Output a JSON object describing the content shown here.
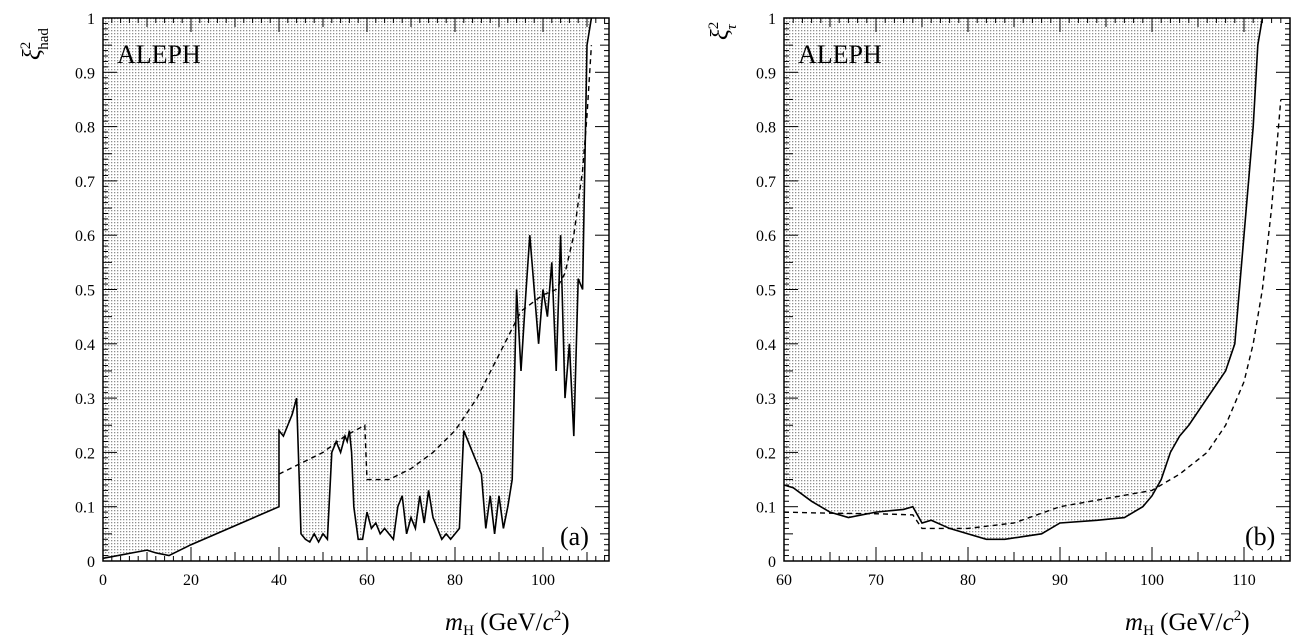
{
  "chart_data": [
    {
      "type": "line",
      "panel_label": "(a)",
      "experiment_label": "ALEPH",
      "xlabel": "m_H (GeV/c²)",
      "ylabel": "ξ²_had",
      "xlim": [
        0,
        115
      ],
      "ylim": [
        0,
        1
      ],
      "x_ticks": [
        0,
        20,
        40,
        60,
        80,
        100
      ],
      "y_ticks": [
        0,
        0.1,
        0.2,
        0.3,
        0.4,
        0.5,
        0.6,
        0.7,
        0.8,
        0.9,
        1
      ],
      "shaded_region": "above observed limit",
      "series": [
        {
          "style": "solid",
          "x": [
            0,
            10,
            12,
            15,
            20,
            30,
            40,
            40,
            41,
            42,
            43,
            44,
            45,
            46,
            47,
            48,
            49,
            50,
            51,
            52,
            53,
            54,
            55,
            55.5,
            56,
            56.5,
            57,
            58,
            59,
            60,
            61,
            62,
            63,
            64,
            65,
            66,
            67,
            68,
            69,
            70,
            71,
            72,
            73,
            74,
            75,
            76,
            77,
            78,
            79,
            80,
            81,
            82,
            83,
            84,
            85,
            86,
            87,
            88,
            89,
            90,
            91,
            92,
            93,
            94,
            95,
            96,
            97,
            98,
            99,
            100,
            101,
            102,
            103,
            104,
            105,
            106,
            107,
            108,
            109,
            110,
            111
          ],
          "y": [
            0.005,
            0.02,
            0.015,
            0.01,
            0.03,
            0.065,
            0.1,
            0.24,
            0.23,
            0.25,
            0.27,
            0.3,
            0.05,
            0.04,
            0.035,
            0.05,
            0.035,
            0.05,
            0.04,
            0.2,
            0.22,
            0.2,
            0.23,
            0.22,
            0.24,
            0.2,
            0.1,
            0.04,
            0.04,
            0.09,
            0.06,
            0.07,
            0.05,
            0.06,
            0.05,
            0.04,
            0.1,
            0.12,
            0.05,
            0.08,
            0.06,
            0.12,
            0.07,
            0.13,
            0.08,
            0.06,
            0.04,
            0.05,
            0.04,
            0.05,
            0.06,
            0.24,
            0.22,
            0.2,
            0.18,
            0.16,
            0.06,
            0.12,
            0.05,
            0.12,
            0.06,
            0.1,
            0.15,
            0.5,
            0.35,
            0.48,
            0.6,
            0.5,
            0.4,
            0.5,
            0.45,
            0.55,
            0.35,
            0.6,
            0.3,
            0.4,
            0.23,
            0.52,
            0.5,
            0.95,
            1.0
          ]
        },
        {
          "style": "dashed",
          "x": [
            40,
            45,
            50,
            55,
            59.5,
            60,
            65,
            70,
            75,
            80,
            85,
            90,
            95,
            100,
            103,
            105,
            107,
            109,
            110,
            111
          ],
          "y": [
            0.16,
            0.18,
            0.2,
            0.23,
            0.25,
            0.15,
            0.15,
            0.17,
            0.2,
            0.24,
            0.3,
            0.38,
            0.46,
            0.49,
            0.5,
            0.53,
            0.6,
            0.72,
            0.82,
            0.95
          ]
        }
      ]
    },
    {
      "type": "line",
      "panel_label": "(b)",
      "experiment_label": "ALEPH",
      "xlabel": "m_H (GeV/c²)",
      "ylabel": "ξ²_τ",
      "xlim": [
        60,
        115
      ],
      "ylim": [
        0,
        1
      ],
      "x_ticks": [
        60,
        70,
        80,
        90,
        100,
        110
      ],
      "y_ticks": [
        0,
        0.1,
        0.2,
        0.3,
        0.4,
        0.5,
        0.6,
        0.7,
        0.8,
        0.9,
        1
      ],
      "shaded_region": "above observed limit",
      "series": [
        {
          "style": "solid",
          "x": [
            60,
            61,
            63,
            65,
            67,
            70,
            73,
            74,
            75,
            76,
            78,
            80,
            82,
            84,
            86,
            88,
            90,
            94,
            97,
            99,
            100,
            101,
            102,
            103,
            104,
            106,
            108,
            109,
            110,
            111,
            111.5,
            112
          ],
          "y": [
            0.14,
            0.135,
            0.11,
            0.09,
            0.08,
            0.09,
            0.095,
            0.1,
            0.07,
            0.075,
            0.06,
            0.05,
            0.04,
            0.04,
            0.045,
            0.05,
            0.07,
            0.075,
            0.08,
            0.1,
            0.12,
            0.15,
            0.2,
            0.23,
            0.25,
            0.3,
            0.35,
            0.4,
            0.6,
            0.8,
            0.95,
            1.0
          ]
        },
        {
          "style": "dashed",
          "x": [
            60,
            65,
            70,
            74,
            75,
            80,
            85,
            90,
            95,
            100,
            103,
            106,
            108,
            110,
            111,
            112,
            113,
            114
          ],
          "y": [
            0.09,
            0.088,
            0.087,
            0.085,
            0.06,
            0.06,
            0.07,
            0.1,
            0.115,
            0.13,
            0.16,
            0.2,
            0.25,
            0.33,
            0.4,
            0.5,
            0.65,
            0.85
          ]
        }
      ]
    }
  ]
}
